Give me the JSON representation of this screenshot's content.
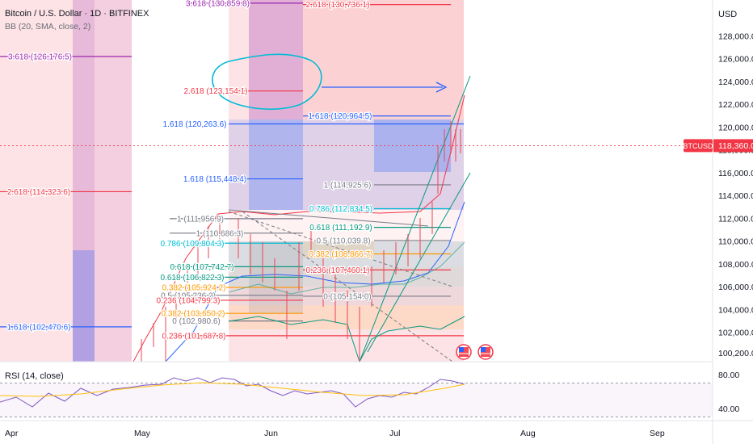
{
  "header": {
    "symbol_title": "Bitcoin / U.S. Dollar · 1D · BITFINEX",
    "bb_indicator": "BB (20, SMA, close, 2)",
    "rsi_indicator": "RSI (14, close)"
  },
  "price_axis": {
    "currency": "USD",
    "ticks": [
      "128,000.0",
      "126,000.0",
      "124,000.0",
      "122,000.0",
      "120,000.0",
      "118,000.0",
      "116,000.0",
      "114,000.0",
      "112,000.0",
      "110,000.0",
      "108,000.0",
      "106,000.0",
      "104,000.0",
      "102,000.0",
      "100,200.0"
    ],
    "tick_values": [
      128000,
      126000,
      124000,
      122000,
      120000,
      118000,
      116000,
      114000,
      112000,
      110000,
      108000,
      106000,
      104000,
      102000,
      100200
    ],
    "symbol_badge": "BTCUSD",
    "current_price": "118,360.0",
    "current_price_value": 118360
  },
  "rsi_axis": {
    "ticks": [
      "80.00",
      "40.00"
    ],
    "tick_values": [
      80,
      40
    ]
  },
  "time_axis": {
    "labels": [
      "Apr",
      "May",
      "Jun",
      "Jul",
      "Aug",
      "Sep"
    ]
  },
  "colors": {
    "red": "#f23645",
    "blue": "#2962ff",
    "teal": "#00bcd4",
    "green": "#089981",
    "orange": "#ff9800",
    "purple": "#9c27b0",
    "gray": "#787b86",
    "annotation": "#00bcd4",
    "candle": "#e84e5a"
  },
  "fib_levels": [
    {
      "text": "3.618 (130,859.8)",
      "color": "purple",
      "price": 130859.8
    },
    {
      "text": "2.618 (130,736.1)",
      "color": "red",
      "price": 130736.1
    },
    {
      "text": "3.618 (126,176.5)",
      "color": "purple",
      "price": 126176.5
    },
    {
      "text": "2.618 (123,154.1)",
      "color": "red",
      "price": 123154.1
    },
    {
      "text": "1.618 (120,964.5)",
      "color": "blue",
      "price": 120964.5
    },
    {
      "text": "1.618 (120,263.6)",
      "color": "blue",
      "price": 120263.6
    },
    {
      "text": "1.618 (115,448.4)",
      "color": "blue",
      "price": 115448.4
    },
    {
      "text": "1 (114,925.6)",
      "color": "gray",
      "price": 114925.6
    },
    {
      "text": "2.618 (114,323.6)",
      "color": "red",
      "price": 114323.6
    },
    {
      "text": "0.786 (112,834.5)",
      "color": "teal",
      "price": 112834.5
    },
    {
      "text": "1 (111,956.9)",
      "color": "gray",
      "price": 111956.9
    },
    {
      "text": "0.618 (111,192.9)",
      "color": "green",
      "price": 111192.9
    },
    {
      "text": "1 (110,686.3)",
      "color": "gray",
      "price": 110686.3
    },
    {
      "text": "0.5 (110,039.8)",
      "color": "gray",
      "price": 110039.8
    },
    {
      "text": "0.786 (109,804.3)",
      "color": "teal",
      "price": 109804.3
    },
    {
      "text": "0.382 (108,866.7)",
      "color": "orange",
      "price": 108866.7
    },
    {
      "text": "0.618 (107,742.7)",
      "color": "green",
      "price": 107742.7
    },
    {
      "text": "0.236 (107,460.1)",
      "color": "red",
      "price": 107460.1
    },
    {
      "text": "0.618 (106,822.3)",
      "color": "green",
      "price": 106822.3
    },
    {
      "text": "0.382 (105,924.2)",
      "color": "orange",
      "price": 105924.2
    },
    {
      "text": "0.5 (105,236.2)",
      "color": "gray",
      "price": 105236.2
    },
    {
      "text": "0 (105,154.0)",
      "color": "gray",
      "price": 105154.0
    },
    {
      "text": "0.236 (104,799.3)",
      "color": "red",
      "price": 104799.3
    },
    {
      "text": "0.382 (103,650.2)",
      "color": "orange",
      "price": 103650.2
    },
    {
      "text": "0 (102,980.6)",
      "color": "gray",
      "price": 102980.6
    },
    {
      "text": "1.618 (102,470.6)",
      "color": "blue",
      "price": 102470.6
    },
    {
      "text": "0.236 (101,687.8)",
      "color": "red",
      "price": 101687.8
    }
  ]
}
